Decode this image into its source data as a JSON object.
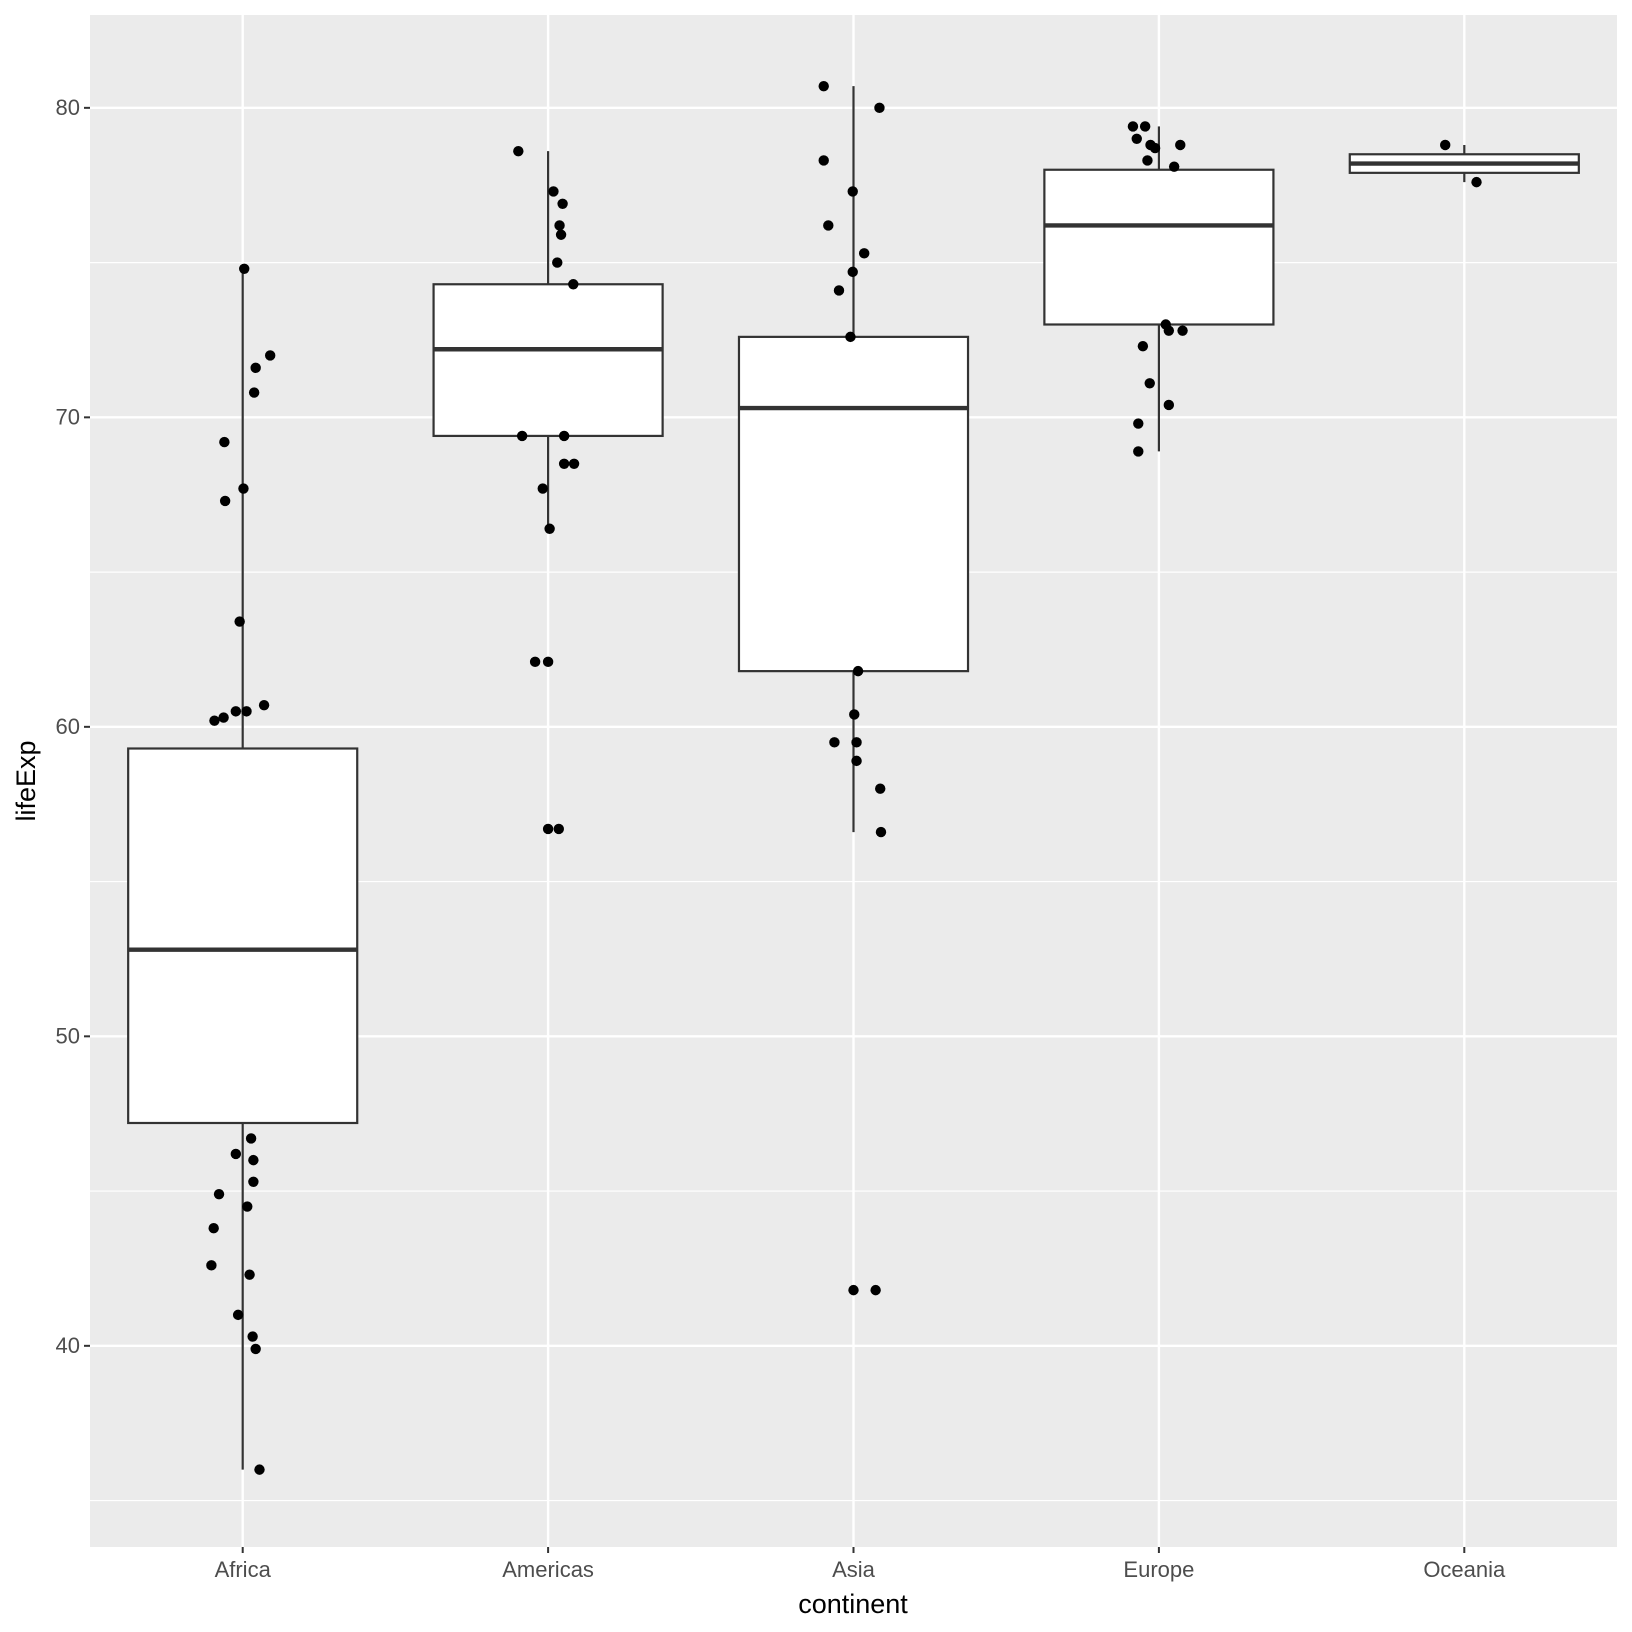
{
  "chart_data": {
    "type": "boxplot",
    "title": "",
    "xlabel": "continent",
    "ylabel": "lifeExp",
    "ylim": [
      33.5,
      83.0
    ],
    "yticks": [
      40,
      50,
      60,
      70,
      80
    ],
    "ytick_labels": [
      "40",
      "50",
      "60",
      "70",
      "80"
    ],
    "grid": true,
    "categories": [
      "Africa",
      "Americas",
      "Asia",
      "Europe",
      "Oceania"
    ],
    "boxes": [
      {
        "category": "Africa",
        "whisker_low": 36.0,
        "q1": 47.2,
        "median": 52.8,
        "q3": 59.3,
        "whisker_high": 74.8
      },
      {
        "category": "Americas",
        "whisker_low": 66.4,
        "q1": 69.4,
        "median": 72.2,
        "q3": 74.3,
        "whisker_high": 78.6
      },
      {
        "category": "Asia",
        "whisker_low": 56.6,
        "q1": 61.8,
        "median": 70.3,
        "q3": 72.6,
        "whisker_high": 80.7
      },
      {
        "category": "Europe",
        "whisker_low": 68.9,
        "q1": 73.0,
        "median": 76.2,
        "q3": 78.0,
        "whisker_high": 79.4
      },
      {
        "category": "Oceania",
        "whisker_low": 77.6,
        "q1": 77.9,
        "median": 78.2,
        "q3": 78.5,
        "whisker_high": 78.8
      }
    ],
    "points": [
      {
        "category": "Africa",
        "values": [
          74.8,
          72.0,
          71.6,
          70.8,
          69.2,
          67.7,
          67.3,
          63.4,
          60.7,
          60.5,
          60.5,
          60.3,
          60.2,
          46.7,
          46.2,
          46.0,
          45.3,
          44.9,
          44.5,
          43.8,
          42.6,
          42.3,
          41.0,
          40.3,
          39.9,
          36.0
        ],
        "jitter": [
          0.02,
          0.36,
          0.17,
          0.15,
          -0.24,
          0.01,
          -0.23,
          -0.04,
          0.28,
          -0.09,
          0.05,
          -0.25,
          -0.37,
          0.11,
          -0.09,
          0.14,
          0.14,
          -0.31,
          0.06,
          -0.38,
          -0.41,
          0.09,
          -0.06,
          0.13,
          0.17,
          0.22
        ]
      },
      {
        "category": "Americas",
        "values": [
          78.6,
          77.3,
          76.9,
          76.2,
          75.9,
          75.0,
          74.3,
          69.4,
          69.4,
          68.5,
          68.5,
          67.7,
          66.4,
          62.1,
          62.1,
          56.7,
          56.7
        ],
        "jitter": [
          -0.39,
          0.07,
          0.19,
          0.15,
          0.17,
          0.12,
          0.33,
          -0.34,
          0.21,
          0.21,
          0.34,
          -0.07,
          0.02,
          -0.17,
          0.0,
          0.0,
          0.14
        ]
      },
      {
        "category": "Asia",
        "values": [
          80.7,
          80.0,
          78.3,
          77.3,
          76.2,
          75.3,
          74.7,
          74.1,
          72.6,
          61.8,
          60.4,
          59.5,
          59.5,
          58.9,
          58.0,
          56.6,
          41.8,
          41.8
        ],
        "jitter": [
          -0.39,
          0.34,
          -0.39,
          -0.01,
          -0.33,
          0.14,
          -0.01,
          -0.19,
          -0.04,
          0.06,
          0.01,
          -0.25,
          0.04,
          0.04,
          0.35,
          0.36,
          0.0,
          0.29
        ]
      },
      {
        "category": "Europe",
        "values": [
          79.4,
          79.4,
          79.0,
          78.8,
          78.7,
          78.8,
          78.3,
          78.1,
          73.0,
          72.8,
          72.8,
          72.3,
          71.1,
          70.4,
          69.8,
          68.9
        ],
        "jitter": [
          -0.34,
          -0.18,
          -0.29,
          -0.11,
          -0.05,
          0.28,
          -0.15,
          0.2,
          0.09,
          0.13,
          0.31,
          -0.21,
          -0.12,
          0.13,
          -0.27,
          -0.27
        ]
      },
      {
        "category": "Oceania",
        "values": [
          78.8,
          77.6
        ],
        "jitter": [
          -0.25,
          0.16
        ]
      }
    ],
    "colors": {
      "panel_background": "#EBEBEB",
      "grid": "#FFFFFF",
      "box_fill": "#FFFFFF",
      "box_stroke": "#333333",
      "point": "#000000"
    }
  }
}
